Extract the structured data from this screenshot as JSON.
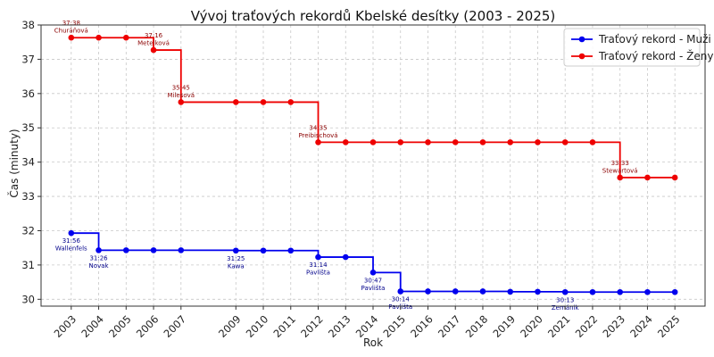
{
  "chart_data": {
    "type": "line",
    "title": "Vývoj traťových rekordů Kbelské desítky (2003 - 2025)",
    "xlabel": "Rok",
    "ylabel": "Čas (minuty)",
    "xlim": [
      2001.9,
      2026.1
    ],
    "ylim": [
      29.8,
      38
    ],
    "yticks": [
      30,
      31,
      32,
      33,
      34,
      35,
      36,
      37,
      38
    ],
    "x": [
      2003,
      2004,
      2005,
      2006,
      2007,
      2009,
      2010,
      2011,
      2012,
      2013,
      2014,
      2015,
      2016,
      2017,
      2018,
      2019,
      2020,
      2021,
      2022,
      2023,
      2024,
      2025
    ],
    "grid": true,
    "legend_position": "top-right",
    "series": [
      {
        "name": "Traťový rekord - Muži",
        "color": "#0000ee",
        "values": [
          31.93,
          31.43,
          31.43,
          31.43,
          31.43,
          31.42,
          31.42,
          31.42,
          31.23,
          31.23,
          30.78,
          30.23,
          30.23,
          30.23,
          30.23,
          30.22,
          30.22,
          30.21,
          30.21,
          30.21,
          30.21,
          30.21
        ],
        "annotations": [
          {
            "x": 2003,
            "y": 31.93,
            "lines": [
              "31:56",
              "Wallenfels"
            ]
          },
          {
            "x": 2004,
            "y": 31.43,
            "lines": [
              "31:26",
              "Novak"
            ]
          },
          {
            "x": 2009,
            "y": 31.42,
            "lines": [
              "31:25",
              "Kawa"
            ]
          },
          {
            "x": 2012,
            "y": 31.23,
            "lines": [
              "31:14",
              "Pavlišta"
            ]
          },
          {
            "x": 2014,
            "y": 30.78,
            "lines": [
              "30:47",
              "Pavlišta"
            ]
          },
          {
            "x": 2015,
            "y": 30.23,
            "lines": [
              "30:14",
              "Pavlišta"
            ]
          },
          {
            "x": 2021,
            "y": 30.21,
            "lines": [
              "30:13",
              "Zemánik"
            ]
          }
        ]
      },
      {
        "name": "Traťový rekord - Ženy",
        "color": "#ee0000",
        "values": [
          37.63,
          37.63,
          37.63,
          37.27,
          35.75,
          35.75,
          35.75,
          35.75,
          34.58,
          34.58,
          34.58,
          34.58,
          34.58,
          34.58,
          34.58,
          34.58,
          34.58,
          34.58,
          34.58,
          33.55,
          33.55,
          33.55
        ],
        "annotations": [
          {
            "x": 2003,
            "y": 37.63,
            "lines": [
              "37:38",
              "Churáňová"
            ]
          },
          {
            "x": 2006,
            "y": 37.27,
            "lines": [
              "37:16",
              "Metelková"
            ]
          },
          {
            "x": 2007,
            "y": 35.75,
            "lines": [
              "35:45",
              "Milesová"
            ]
          },
          {
            "x": 2012,
            "y": 34.58,
            "lines": [
              "34:35",
              "Preibischová"
            ]
          },
          {
            "x": 2023,
            "y": 33.55,
            "lines": [
              "33:33",
              "Stewartová"
            ]
          }
        ]
      }
    ]
  }
}
